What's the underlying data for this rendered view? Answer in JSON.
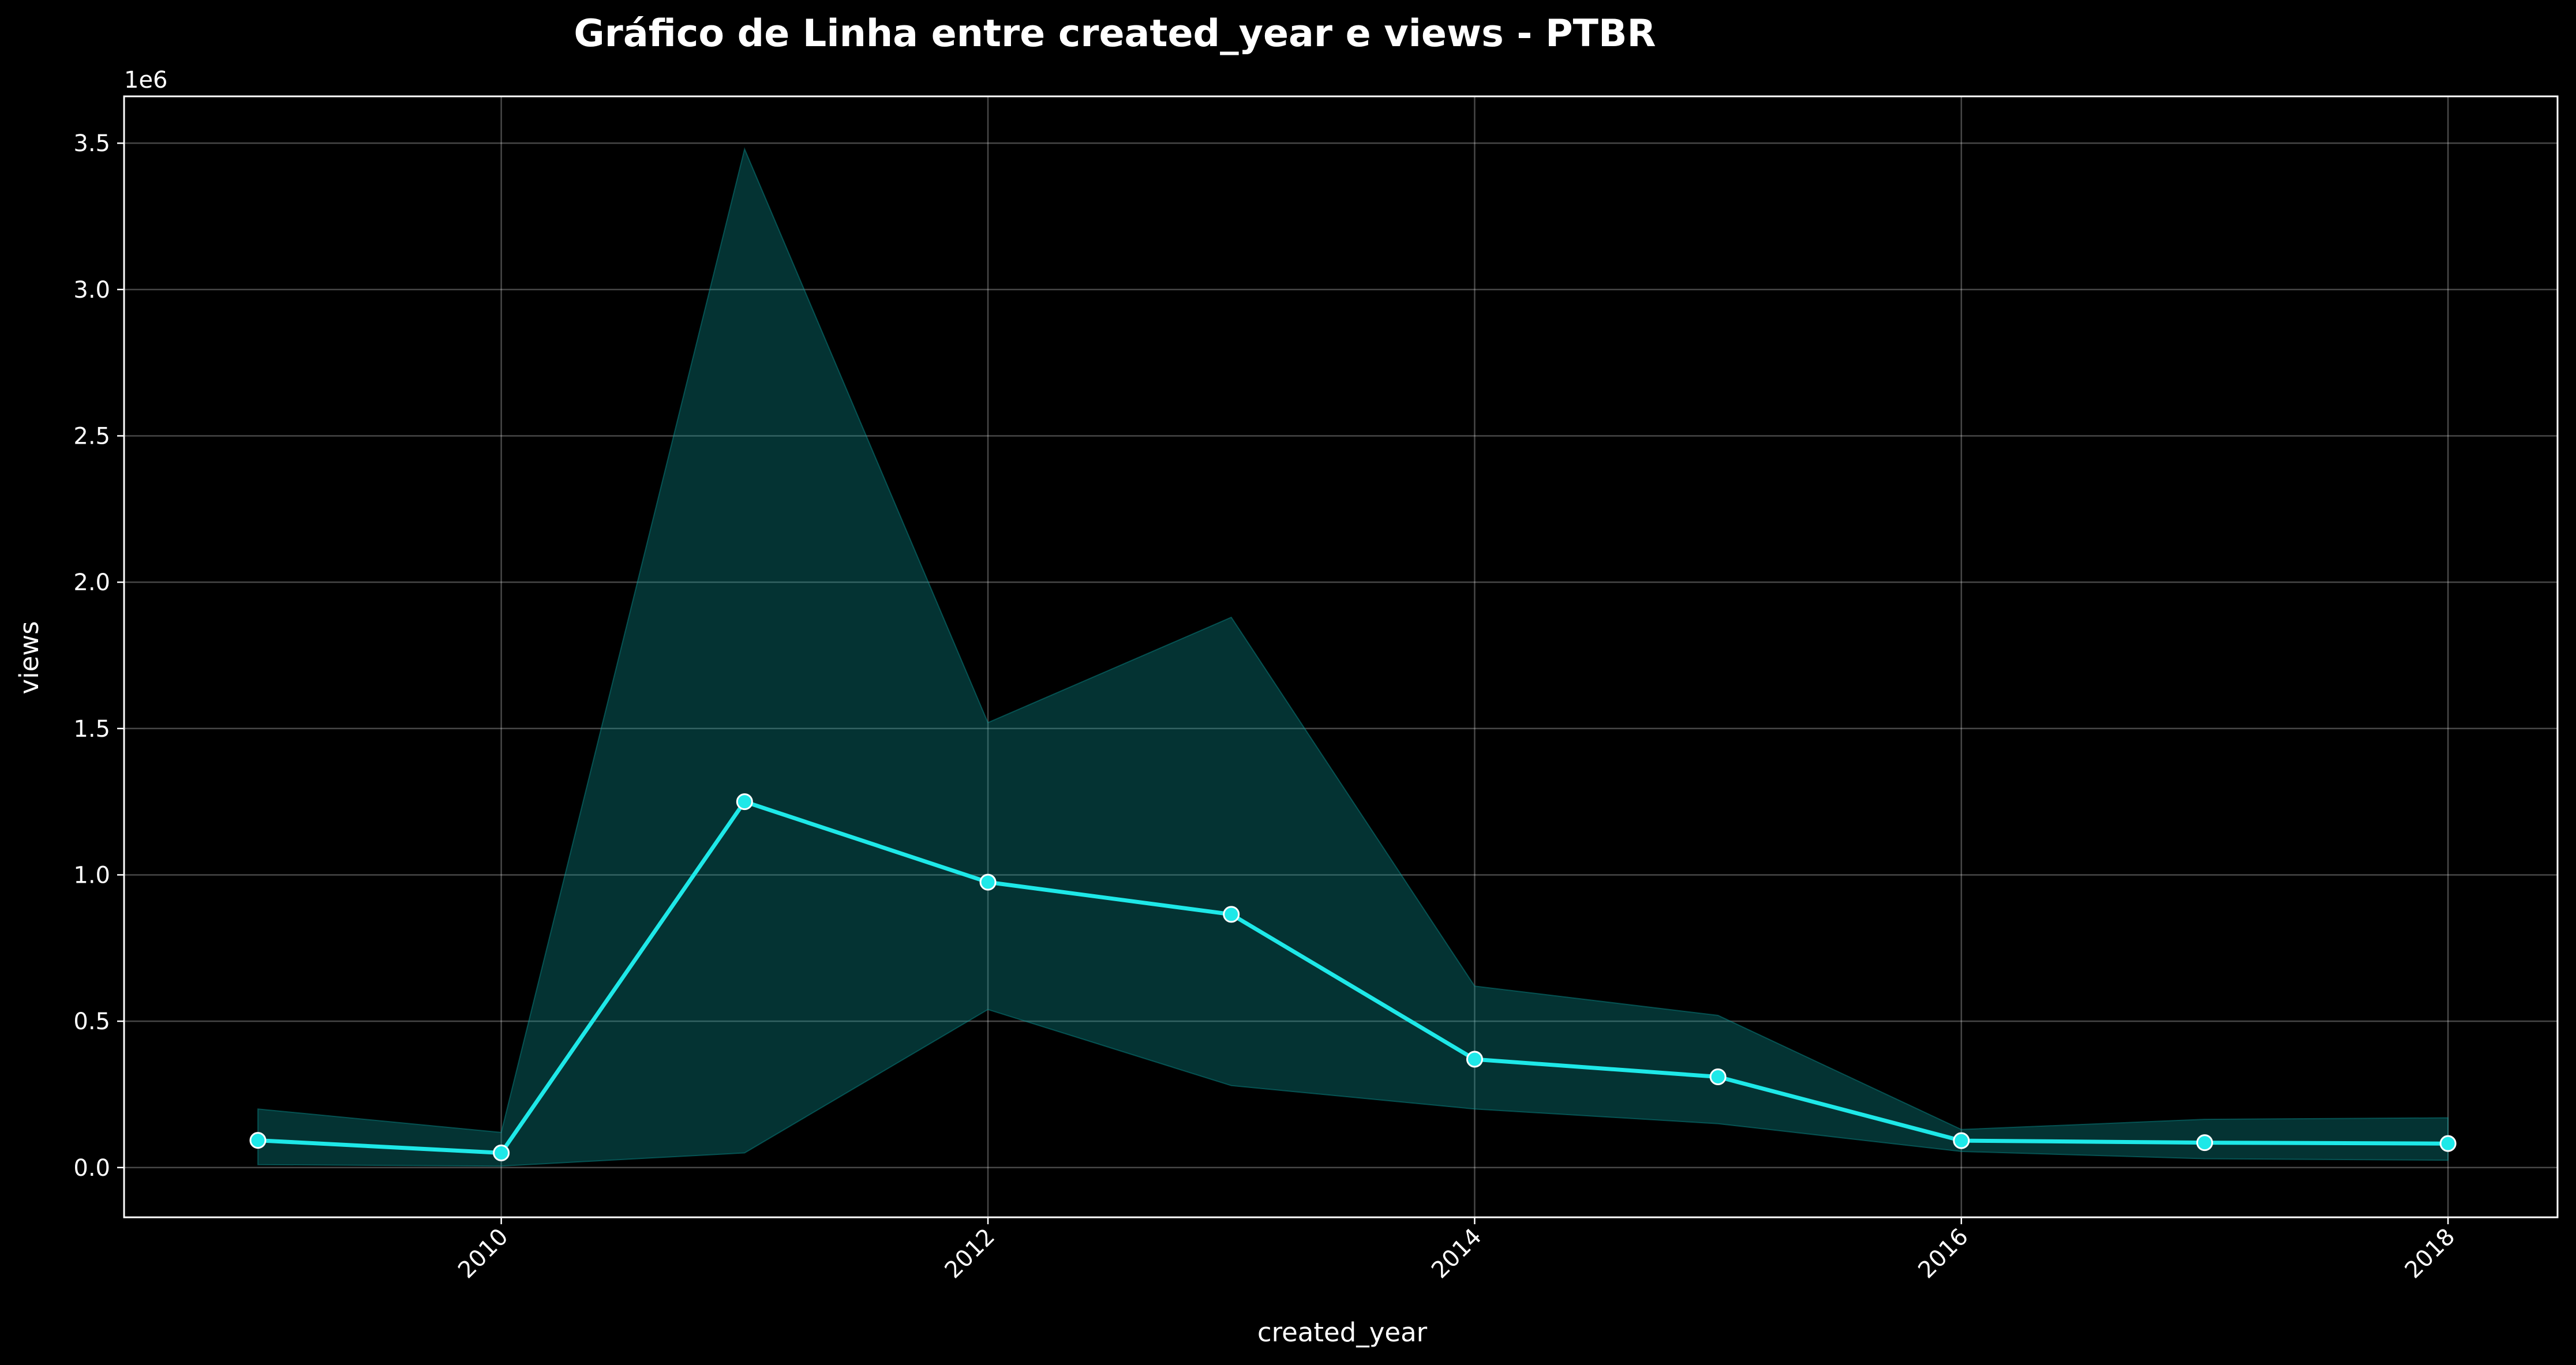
{
  "chart_data": {
    "type": "line",
    "title": "Gráfico de Linha entre created_year e views - PTBR",
    "xlabel": "created_year",
    "ylabel": "views",
    "y_offset_label": "1e6",
    "x_tick_labels": [
      "2010",
      "2012",
      "2014",
      "2016",
      "2018"
    ],
    "x_ticks": [
      2010,
      2012,
      2014,
      2016,
      2018
    ],
    "y_tick_labels": [
      "0.0",
      "0.5",
      "1.0",
      "1.5",
      "2.0",
      "2.5",
      "3.0",
      "3.5"
    ],
    "y_ticks": [
      0,
      500000,
      1000000,
      1500000,
      2000000,
      2500000,
      3000000,
      3500000
    ],
    "xlim": [
      2008.45,
      2018.45
    ],
    "ylim": [
      -170000,
      3660000
    ],
    "grid": true,
    "series": [
      {
        "x": [
          2009,
          2010,
          2011,
          2012,
          2013,
          2014,
          2015,
          2016,
          2017,
          2018
        ],
        "values": [
          93000,
          50000,
          1250000,
          975000,
          865000,
          370000,
          310000,
          92000,
          85000,
          82000
        ],
        "ci_lower": [
          10000,
          5000,
          50000,
          540000,
          280000,
          200000,
          150000,
          55000,
          30000,
          25000
        ],
        "ci_upper": [
          200000,
          120000,
          3480000,
          1520000,
          1880000,
          620000,
          520000,
          130000,
          165000,
          170000
        ]
      }
    ],
    "colors": {
      "line": "#1ee8e8",
      "band": "#0ba0a0",
      "marker_edge": "#ffffff",
      "grid": "#ffffff",
      "background": "#000000"
    }
  }
}
